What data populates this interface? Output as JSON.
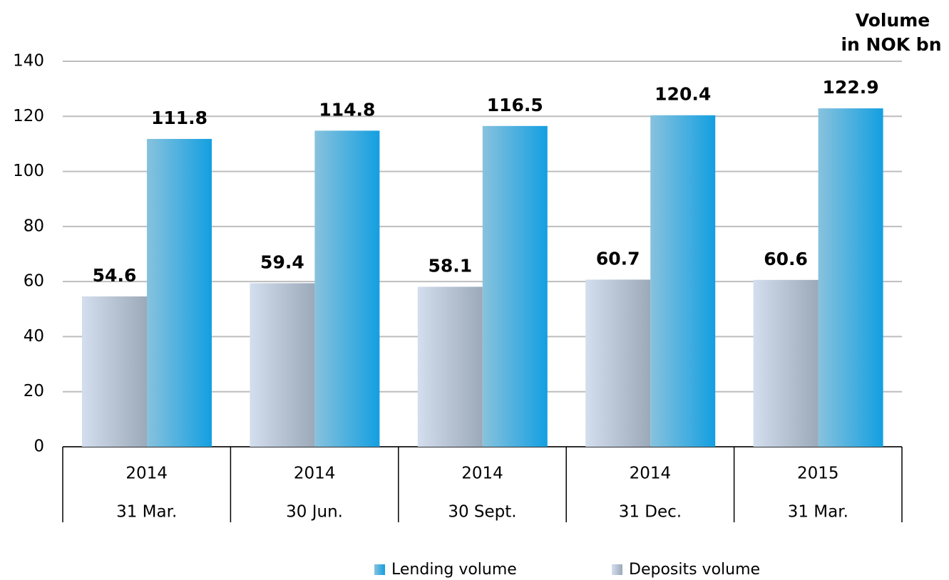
{
  "chart_data": {
    "type": "bar",
    "ylabel": [
      "Volume",
      "in NOK bn"
    ],
    "categories": [
      "31 Mar.",
      "30 Jun.",
      "30 Sept.",
      "31 Dec.",
      "31 Mar."
    ],
    "years": [
      "2014",
      "2014",
      "2014",
      "2014",
      "2015"
    ],
    "series": [
      {
        "name": "Deposits volume",
        "gradient": [
          "#d3deee",
          "#9ba9b9"
        ],
        "values": [
          54.6,
          59.4,
          58.1,
          60.7,
          60.6
        ]
      },
      {
        "name": "Lending volume",
        "gradient": [
          "#88c2dd",
          "#139fe1"
        ],
        "values": [
          111.8,
          114.8,
          116.5,
          120.4,
          122.9
        ]
      }
    ],
    "ylim": [
      0,
      140
    ],
    "yticks": [
      0,
      20,
      40,
      60,
      80,
      100,
      120,
      140
    ],
    "grid": true
  }
}
